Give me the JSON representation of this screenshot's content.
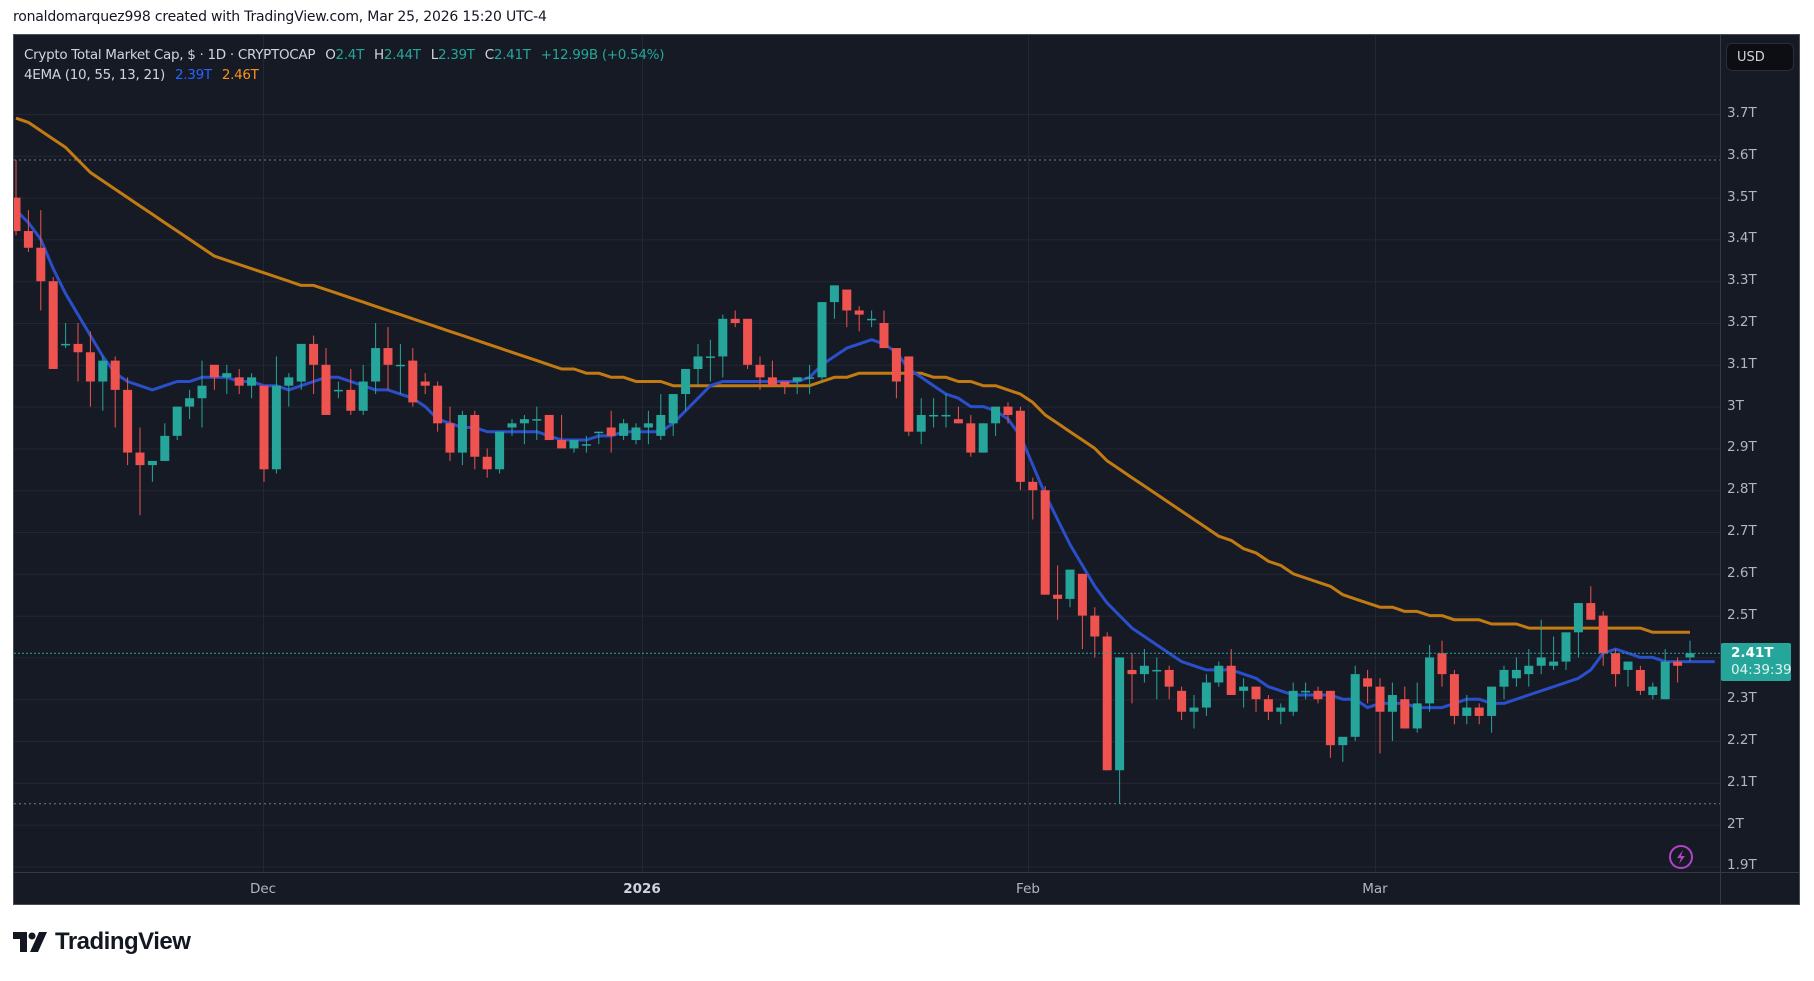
{
  "credit": "ronaldomarquez998 created with TradingView.com, Mar 25, 2026 15:20 UTC-4",
  "legend": {
    "symbol": "Crypto Total Market Cap, $ · 1D · CRYPTOCAP",
    "open_label": "O",
    "open": "2.4T",
    "high_label": "H",
    "high": "2.44T",
    "low_label": "L",
    "low": "2.39T",
    "close_label": "C",
    "close": "2.41T",
    "change": "+12.99B (+0.54%)",
    "indicator": "4EMA (10, 55, 13, 21)",
    "ema_fast": "2.39T",
    "ema_slow": "2.46T"
  },
  "currency_button": "USD",
  "price_axis": [
    "3.7T",
    "3.6T",
    "3.5T",
    "3.4T",
    "3.3T",
    "3.2T",
    "3.1T",
    "3T",
    "2.9T",
    "2.8T",
    "2.7T",
    "2.6T",
    "2.5T",
    "2.4T",
    "2.3T",
    "2.2T",
    "2.1T",
    "2T",
    "1.9T"
  ],
  "current_price": {
    "value": "2.41T",
    "countdown": "04:39:39"
  },
  "time_axis": [
    {
      "label": "Dec",
      "bold": false
    },
    {
      "label": "2026",
      "bold": true
    },
    {
      "label": "Feb",
      "bold": false
    },
    {
      "label": "Mar",
      "bold": false
    }
  ],
  "brand": "TradingView",
  "colors": {
    "up": "#26a69a",
    "down": "#ef5350",
    "ema_fast": "#2a4fc9",
    "ema_slow": "#c27a12",
    "background": "#161a25",
    "grid": "#232734"
  },
  "chart_data": {
    "type": "candlestick",
    "title": "Crypto Total Market Cap, $ · 1D · CRYPTOCAP",
    "ylabel": "USD",
    "ylim": [
      1.88,
      3.78
    ],
    "x_start": "2025-11-11",
    "x_end": "2026-03-25",
    "x_ticks": [
      "Dec",
      "2026",
      "Feb",
      "Mar"
    ],
    "y_ticks": [
      3.7,
      3.6,
      3.5,
      3.4,
      3.3,
      3.2,
      3.1,
      3.0,
      2.9,
      2.8,
      2.7,
      2.6,
      2.5,
      2.4,
      2.3,
      2.2,
      2.1,
      2.0,
      1.9
    ],
    "high_marker": 3.59,
    "low_marker": 2.05,
    "last_close": 2.41,
    "ohlc": [
      [
        3.5,
        3.59,
        3.41,
        3.42
      ],
      [
        3.42,
        3.47,
        3.37,
        3.38
      ],
      [
        3.38,
        3.47,
        3.23,
        3.3
      ],
      [
        3.3,
        3.31,
        3.09,
        3.09
      ],
      [
        3.15,
        3.2,
        3.14,
        3.15
      ],
      [
        3.15,
        3.2,
        3.06,
        3.13
      ],
      [
        3.13,
        3.18,
        3.0,
        3.06
      ],
      [
        3.06,
        3.12,
        2.99,
        3.11
      ],
      [
        3.11,
        3.12,
        2.95,
        3.04
      ],
      [
        3.04,
        3.07,
        2.86,
        2.89
      ],
      [
        2.89,
        2.95,
        2.74,
        2.86
      ],
      [
        2.86,
        2.86,
        2.82,
        2.87
      ],
      [
        2.87,
        2.96,
        2.87,
        2.93
      ],
      [
        2.93,
        3.0,
        2.92,
        3.0
      ],
      [
        3.0,
        3.04,
        2.97,
        3.02
      ],
      [
        3.02,
        3.11,
        2.95,
        3.05
      ],
      [
        3.1,
        3.07,
        3.04,
        3.07
      ],
      [
        3.07,
        3.1,
        3.03,
        3.08
      ],
      [
        3.07,
        3.09,
        3.03,
        3.05
      ],
      [
        3.05,
        3.08,
        3.02,
        3.07
      ],
      [
        3.05,
        3.05,
        2.82,
        2.85
      ],
      [
        2.85,
        3.12,
        2.84,
        3.05
      ],
      [
        3.05,
        3.08,
        3.0,
        3.07
      ],
      [
        3.06,
        3.12,
        3.04,
        3.15
      ],
      [
        3.15,
        3.17,
        3.03,
        3.1
      ],
      [
        3.1,
        3.14,
        2.98,
        2.98
      ],
      [
        3.04,
        3.06,
        3.02,
        3.04
      ],
      [
        3.04,
        3.09,
        2.98,
        2.99
      ],
      [
        2.99,
        3.1,
        2.98,
        3.06
      ],
      [
        3.06,
        3.2,
        3.03,
        3.14
      ],
      [
        3.14,
        3.19,
        3.04,
        3.1
      ],
      [
        3.1,
        3.15,
        3.03,
        3.1
      ],
      [
        3.11,
        3.14,
        3.0,
        3.01
      ],
      [
        3.06,
        3.08,
        3.03,
        3.05
      ],
      [
        3.05,
        3.06,
        2.94,
        2.96
      ],
      [
        2.96,
        3.0,
        2.87,
        2.89
      ],
      [
        2.89,
        2.99,
        2.86,
        2.98
      ],
      [
        2.98,
        2.99,
        2.85,
        2.88
      ],
      [
        2.88,
        2.9,
        2.83,
        2.85
      ],
      [
        2.85,
        2.94,
        2.84,
        2.94
      ],
      [
        2.95,
        2.97,
        2.93,
        2.96
      ],
      [
        2.96,
        2.98,
        2.91,
        2.97
      ],
      [
        2.97,
        3.0,
        2.92,
        2.97
      ],
      [
        2.98,
        2.98,
        2.92,
        2.92
      ],
      [
        2.92,
        2.98,
        2.91,
        2.9
      ],
      [
        2.9,
        2.92,
        2.89,
        2.92
      ],
      [
        2.91,
        2.93,
        2.89,
        2.91
      ],
      [
        2.94,
        2.94,
        2.91,
        2.94
      ],
      [
        2.95,
        2.99,
        2.89,
        2.93
      ],
      [
        2.93,
        2.97,
        2.92,
        2.96
      ],
      [
        2.92,
        2.96,
        2.91,
        2.95
      ],
      [
        2.95,
        2.99,
        2.91,
        2.96
      ],
      [
        2.93,
        3.03,
        2.92,
        2.98
      ],
      [
        2.96,
        3.02,
        2.93,
        3.03
      ],
      [
        3.03,
        3.05,
        2.99,
        3.09
      ],
      [
        3.09,
        3.15,
        3.05,
        3.12
      ],
      [
        3.12,
        3.16,
        3.06,
        3.12
      ],
      [
        3.12,
        3.22,
        3.07,
        3.21
      ],
      [
        3.21,
        3.23,
        3.19,
        3.2
      ],
      [
        3.21,
        3.21,
        3.09,
        3.1
      ],
      [
        3.1,
        3.12,
        3.04,
        3.07
      ],
      [
        3.07,
        3.11,
        3.05,
        3.05
      ],
      [
        3.06,
        3.06,
        3.03,
        3.05
      ],
      [
        3.06,
        3.07,
        3.03,
        3.07
      ],
      [
        3.07,
        3.1,
        3.03,
        3.07
      ],
      [
        3.07,
        3.25,
        3.06,
        3.25
      ],
      [
        3.25,
        3.29,
        3.21,
        3.29
      ],
      [
        3.28,
        3.27,
        3.19,
        3.23
      ],
      [
        3.23,
        3.24,
        3.18,
        3.22
      ],
      [
        3.21,
        3.23,
        3.19,
        3.21
      ],
      [
        3.2,
        3.23,
        3.14,
        3.14
      ],
      [
        3.14,
        3.14,
        3.02,
        3.06
      ],
      [
        3.12,
        3.12,
        2.93,
        2.94
      ],
      [
        2.94,
        3.02,
        2.91,
        2.98
      ],
      [
        2.98,
        3.02,
        2.95,
        2.98
      ],
      [
        2.98,
        3.03,
        2.95,
        2.98
      ],
      [
        2.97,
        3.0,
        2.96,
        2.96
      ],
      [
        2.96,
        2.98,
        2.88,
        2.89
      ],
      [
        2.89,
        2.96,
        2.89,
        2.96
      ],
      [
        2.96,
        3.0,
        2.93,
        3.0
      ],
      [
        3.0,
        3.01,
        2.96,
        2.98
      ],
      [
        2.99,
        3.0,
        2.8,
        2.82
      ],
      [
        2.82,
        2.83,
        2.73,
        2.8
      ],
      [
        2.8,
        2.81,
        2.55,
        2.55
      ],
      [
        2.55,
        2.62,
        2.49,
        2.54
      ],
      [
        2.54,
        2.61,
        2.52,
        2.61
      ],
      [
        2.6,
        2.6,
        2.42,
        2.5
      ],
      [
        2.5,
        2.52,
        2.4,
        2.45
      ],
      [
        2.45,
        2.46,
        2.13,
        2.13
      ],
      [
        2.13,
        2.4,
        2.05,
        2.4
      ],
      [
        2.37,
        2.41,
        2.29,
        2.36
      ],
      [
        2.36,
        2.42,
        2.34,
        2.38
      ],
      [
        2.37,
        2.4,
        2.3,
        2.37
      ],
      [
        2.37,
        2.38,
        2.3,
        2.33
      ],
      [
        2.32,
        2.33,
        2.25,
        2.27
      ],
      [
        2.27,
        2.31,
        2.23,
        2.28
      ],
      [
        2.28,
        2.36,
        2.26,
        2.34
      ],
      [
        2.34,
        2.39,
        2.33,
        2.38
      ],
      [
        2.38,
        2.42,
        2.31,
        2.31
      ],
      [
        2.32,
        2.35,
        2.28,
        2.33
      ],
      [
        2.33,
        2.33,
        2.27,
        2.3
      ],
      [
        2.3,
        2.31,
        2.25,
        2.27
      ],
      [
        2.27,
        2.29,
        2.24,
        2.28
      ],
      [
        2.27,
        2.34,
        2.26,
        2.32
      ],
      [
        2.32,
        2.34,
        2.3,
        2.32
      ],
      [
        2.32,
        2.33,
        2.29,
        2.3
      ],
      [
        2.32,
        2.32,
        2.16,
        2.19
      ],
      [
        2.19,
        2.19,
        2.15,
        2.21
      ],
      [
        2.21,
        2.38,
        2.2,
        2.36
      ],
      [
        2.35,
        2.37,
        2.29,
        2.33
      ],
      [
        2.33,
        2.35,
        2.17,
        2.27
      ],
      [
        2.27,
        2.34,
        2.2,
        2.31
      ],
      [
        2.3,
        2.33,
        2.23,
        2.23
      ],
      [
        2.23,
        2.34,
        2.22,
        2.29
      ],
      [
        2.29,
        2.43,
        2.27,
        2.4
      ],
      [
        2.41,
        2.44,
        2.33,
        2.36
      ],
      [
        2.36,
        2.37,
        2.24,
        2.26
      ],
      [
        2.26,
        2.31,
        2.24,
        2.28
      ],
      [
        2.28,
        2.29,
        2.24,
        2.26
      ],
      [
        2.26,
        2.33,
        2.22,
        2.33
      ],
      [
        2.33,
        2.38,
        2.3,
        2.37
      ],
      [
        2.35,
        2.4,
        2.33,
        2.37
      ],
      [
        2.36,
        2.42,
        2.33,
        2.38
      ],
      [
        2.38,
        2.49,
        2.36,
        2.4
      ],
      [
        2.38,
        2.45,
        2.37,
        2.39
      ],
      [
        2.39,
        2.46,
        2.37,
        2.46
      ],
      [
        2.46,
        2.53,
        2.4,
        2.53
      ],
      [
        2.53,
        2.57,
        2.5,
        2.49
      ],
      [
        2.5,
        2.51,
        2.38,
        2.41
      ],
      [
        2.41,
        2.42,
        2.33,
        2.36
      ],
      [
        2.37,
        2.39,
        2.33,
        2.39
      ],
      [
        2.37,
        2.38,
        2.31,
        2.32
      ],
      [
        2.31,
        2.34,
        2.3,
        2.33
      ],
      [
        2.3,
        2.42,
        2.3,
        2.39
      ],
      [
        2.39,
        2.4,
        2.34,
        2.38
      ],
      [
        2.4,
        2.44,
        2.39,
        2.41
      ]
    ],
    "ema_fast_series": [
      3.47,
      3.44,
      3.4,
      3.33,
      3.27,
      3.22,
      3.17,
      3.12,
      3.08,
      3.06,
      3.05,
      3.04,
      3.05,
      3.06,
      3.06,
      3.07,
      3.07,
      3.07,
      3.06,
      3.06,
      3.05,
      3.05,
      3.04,
      3.05,
      3.06,
      3.07,
      3.07,
      3.06,
      3.05,
      3.04,
      3.04,
      3.03,
      3.02,
      3.0,
      2.97,
      2.96,
      2.95,
      2.95,
      2.94,
      2.94,
      2.94,
      2.94,
      2.94,
      2.93,
      2.92,
      2.92,
      2.92,
      2.93,
      2.93,
      2.94,
      2.94,
      2.94,
      2.94,
      2.96,
      2.99,
      3.02,
      3.05,
      3.06,
      3.06,
      3.06,
      3.06,
      3.06,
      3.06,
      3.06,
      3.07,
      3.1,
      3.12,
      3.14,
      3.15,
      3.16,
      3.15,
      3.13,
      3.09,
      3.07,
      3.05,
      3.03,
      3.02,
      3.0,
      3.0,
      2.99,
      2.97,
      2.93,
      2.86,
      2.79,
      2.73,
      2.67,
      2.62,
      2.57,
      2.53,
      2.5,
      2.47,
      2.45,
      2.43,
      2.41,
      2.39,
      2.38,
      2.37,
      2.37,
      2.37,
      2.36,
      2.35,
      2.33,
      2.32,
      2.31,
      2.31,
      2.31,
      2.31,
      2.3,
      2.3,
      2.28,
      2.29,
      2.29,
      2.29,
      2.28,
      2.28,
      2.28,
      2.29,
      2.3,
      2.3,
      2.29,
      2.29,
      2.3,
      2.31,
      2.32,
      2.33,
      2.34,
      2.35,
      2.37,
      2.41,
      2.42,
      2.41,
      2.4,
      2.4,
      2.39,
      2.39,
      2.39,
      2.39,
      2.39
    ],
    "ema_slow_series": [
      3.69,
      3.68,
      3.66,
      3.64,
      3.62,
      3.59,
      3.56,
      3.54,
      3.52,
      3.5,
      3.48,
      3.46,
      3.44,
      3.42,
      3.4,
      3.38,
      3.36,
      3.35,
      3.34,
      3.33,
      3.32,
      3.31,
      3.3,
      3.29,
      3.29,
      3.28,
      3.27,
      3.26,
      3.25,
      3.24,
      3.23,
      3.22,
      3.21,
      3.2,
      3.19,
      3.18,
      3.17,
      3.16,
      3.15,
      3.14,
      3.13,
      3.12,
      3.11,
      3.1,
      3.09,
      3.09,
      3.08,
      3.08,
      3.07,
      3.07,
      3.06,
      3.06,
      3.06,
      3.05,
      3.05,
      3.05,
      3.05,
      3.05,
      3.05,
      3.05,
      3.05,
      3.05,
      3.05,
      3.05,
      3.05,
      3.06,
      3.07,
      3.07,
      3.08,
      3.08,
      3.08,
      3.08,
      3.08,
      3.08,
      3.07,
      3.07,
      3.06,
      3.06,
      3.05,
      3.05,
      3.04,
      3.03,
      3.01,
      2.98,
      2.96,
      2.94,
      2.92,
      2.9,
      2.87,
      2.85,
      2.83,
      2.81,
      2.79,
      2.77,
      2.75,
      2.73,
      2.71,
      2.69,
      2.68,
      2.66,
      2.65,
      2.63,
      2.62,
      2.6,
      2.59,
      2.58,
      2.57,
      2.55,
      2.54,
      2.53,
      2.52,
      2.52,
      2.51,
      2.51,
      2.5,
      2.5,
      2.49,
      2.49,
      2.49,
      2.48,
      2.48,
      2.48,
      2.47,
      2.47,
      2.47,
      2.47,
      2.47,
      2.47,
      2.47,
      2.47,
      2.47,
      2.47,
      2.46,
      2.46,
      2.46,
      2.46
    ]
  }
}
